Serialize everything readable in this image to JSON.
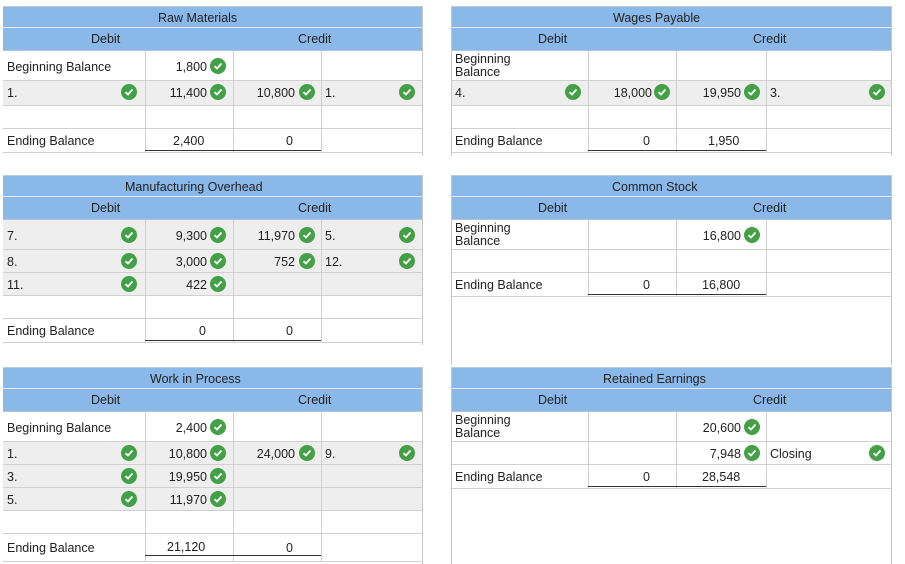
{
  "accounts": {
    "raw_materials": {
      "title": "Raw Materials",
      "debit_label": "Debit",
      "credit_label": "Credit",
      "beginning_label": "Beginning Balance",
      "beginning_debit": "1,800",
      "row1_label": "1.",
      "row1_debit": "11,400",
      "row1_credit": "10,800",
      "row1_credit_ref": "1.",
      "ending_label": "Ending Balance",
      "ending_debit": "2,400",
      "ending_credit": "0"
    },
    "manufacturing_overhead": {
      "title": "Manufacturing Overhead",
      "debit_label": "Debit",
      "credit_label": "Credit",
      "row1_label": "7.",
      "row1_debit": "9,300",
      "row1_credit": "11,970",
      "row1_credit_ref": "5.",
      "row2_label": "8.",
      "row2_debit": "3,000",
      "row2_credit": "752",
      "row2_credit_ref": "12.",
      "row3_label": "11.",
      "row3_debit": "422",
      "ending_label": "Ending Balance",
      "ending_debit": "0",
      "ending_credit": "0"
    },
    "work_in_process": {
      "title": "Work in Process",
      "debit_label": "Debit",
      "credit_label": "Credit",
      "beginning_label": "Beginning Balance",
      "beginning_debit": "2,400",
      "row1_label": "1.",
      "row1_debit": "10,800",
      "row1_credit": "24,000",
      "row1_credit_ref": "9.",
      "row2_label": "3.",
      "row2_debit": "19,950",
      "row3_label": "5.",
      "row3_debit": "11,970",
      "ending_label": "Ending Balance",
      "ending_debit": "21,120",
      "ending_credit": "0"
    },
    "wages_payable": {
      "title": "Wages Payable",
      "debit_label": "Debit",
      "credit_label": "Credit",
      "beginning_label_1": "Beginning",
      "beginning_label_2": "Balance",
      "row1_label": "4.",
      "row1_debit": "18,000",
      "row1_credit": "19,950",
      "row1_credit_ref": "3.",
      "ending_label": "Ending Balance",
      "ending_debit": "0",
      "ending_credit": "1,950"
    },
    "common_stock": {
      "title": "Common Stock",
      "debit_label": "Debit",
      "credit_label": "Credit",
      "beginning_label_1": "Beginning",
      "beginning_label_2": "Balance",
      "beginning_credit": "16,800",
      "ending_label": "Ending Balance",
      "ending_debit": "0",
      "ending_credit": "16,800"
    },
    "retained_earnings": {
      "title": "Retained Earnings",
      "debit_label": "Debit",
      "credit_label": "Credit",
      "beginning_label_1": "Beginning",
      "beginning_label_2": "Balance",
      "beginning_credit": "20,600",
      "row1_credit": "7,948",
      "row1_credit_ref": "Closing",
      "ending_label": "Ending Balance",
      "ending_debit": "0",
      "ending_credit": "28,548"
    }
  },
  "icons": {
    "check": "check-circle-icon"
  },
  "colors": {
    "header_blue": "#8ab8e8",
    "check_green": "#43a047"
  }
}
